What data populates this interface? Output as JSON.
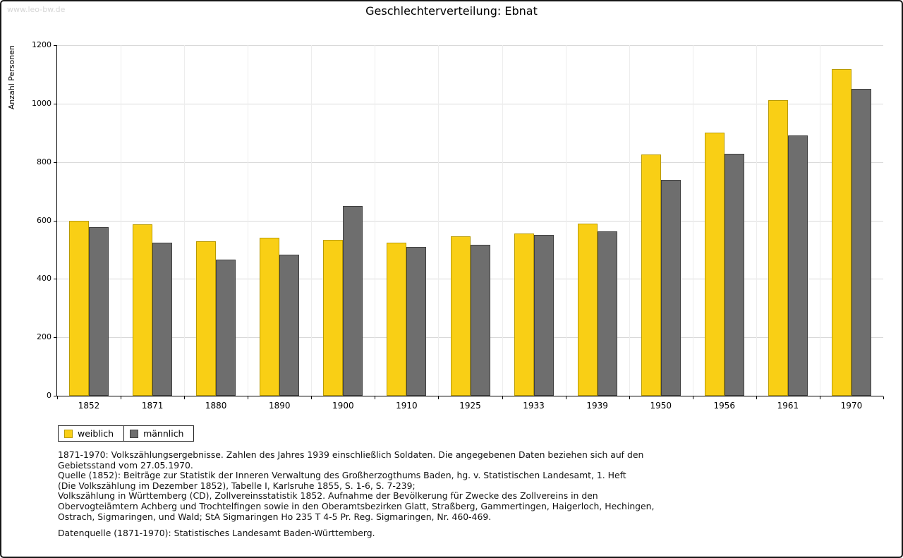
{
  "page": {
    "watermark": "www.leo-bw.de"
  },
  "chart_data": {
    "type": "bar",
    "title": "Geschlechterverteilung: Ebnat",
    "xlabel": "",
    "ylabel": "Anzahl Personen",
    "ylim": [
      0,
      1200
    ],
    "ytick_step": 200,
    "grid": true,
    "legend_position": "bottom-left",
    "categories": [
      "1852",
      "1871",
      "1880",
      "1890",
      "1900",
      "1910",
      "1925",
      "1933",
      "1939",
      "1950",
      "1956",
      "1961",
      "1970"
    ],
    "series": [
      {
        "name": "weiblich",
        "color": "#F9CF15",
        "border_color": "#B89A00",
        "values": [
          600,
          587,
          530,
          540,
          533,
          525,
          545,
          555,
          588,
          826,
          900,
          1012,
          1118
        ]
      },
      {
        "name": "männlich",
        "color": "#6E6E6E",
        "border_color": "#3F3F3F",
        "values": [
          577,
          523,
          465,
          482,
          649,
          509,
          516,
          550,
          562,
          739,
          828,
          891,
          1051
        ]
      }
    ]
  },
  "notes": {
    "lines": [
      "1871-1970: Volkszählungsergebnisse. Zahlen des Jahres 1939 einschließlich Soldaten. Die angegebenen Daten beziehen sich auf den",
      "Gebietsstand vom 27.05.1970.",
      "Quelle (1852): Beiträge zur Statistik der Inneren Verwaltung des Großherzogthums Baden, hg. v. Statistischen Landesamt, 1. Heft",
      "(Die Volkszählung im Dezember 1852), Tabelle I, Karlsruhe 1855, S. 1-6, S. 7-239;",
      "Volkszählung in Württemberg (CD), Zollvereinsstatistik 1852. Aufnahme der Bevölkerung für Zwecke des Zollvereins in den",
      "Obervogteiämtern Achberg und Trochtelfingen sowie in den Oberamtsbezirken Glatt, Straßberg, Gammertingen, Haigerloch, Hechingen,",
      "Ostrach, Sigmaringen, und Wald; StA Sigmaringen Ho 235 T 4-5 Pr. Reg. Sigmaringen, Nr. 460-469."
    ],
    "datasource": "Datenquelle (1871-1970): Statistisches Landesamt Baden-Württemberg."
  }
}
